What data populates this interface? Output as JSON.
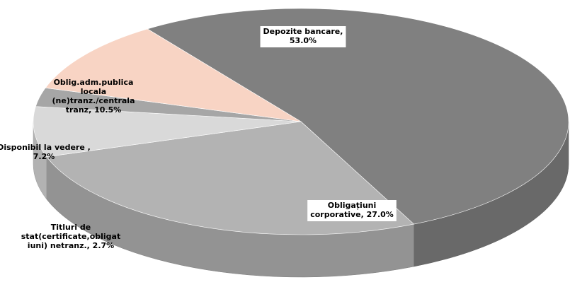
{
  "chart_data": {
    "type": "pie3d",
    "values": [
      53.0,
      27.0,
      7.2,
      2.7,
      10.5
    ],
    "value_labels": [
      [
        "Depozite bancare,",
        "53.0%"
      ],
      [
        "Obligațiuni",
        "corporative, 27.0%"
      ],
      [
        "Disponibil la vedere ,",
        "7.2%"
      ],
      [
        "Titluri de",
        "stat(certificate,obligat",
        "iuni) netranz., 2.7%"
      ],
      [
        "Oblig.adm.publica",
        "locala",
        "(ne)tranz./centrala",
        "tranz, 10.5%"
      ]
    ],
    "colors": [
      "#808080",
      "#b3b3b3",
      "#d9d9d9",
      "#a6a6a6",
      "#f8d4c4"
    ]
  }
}
